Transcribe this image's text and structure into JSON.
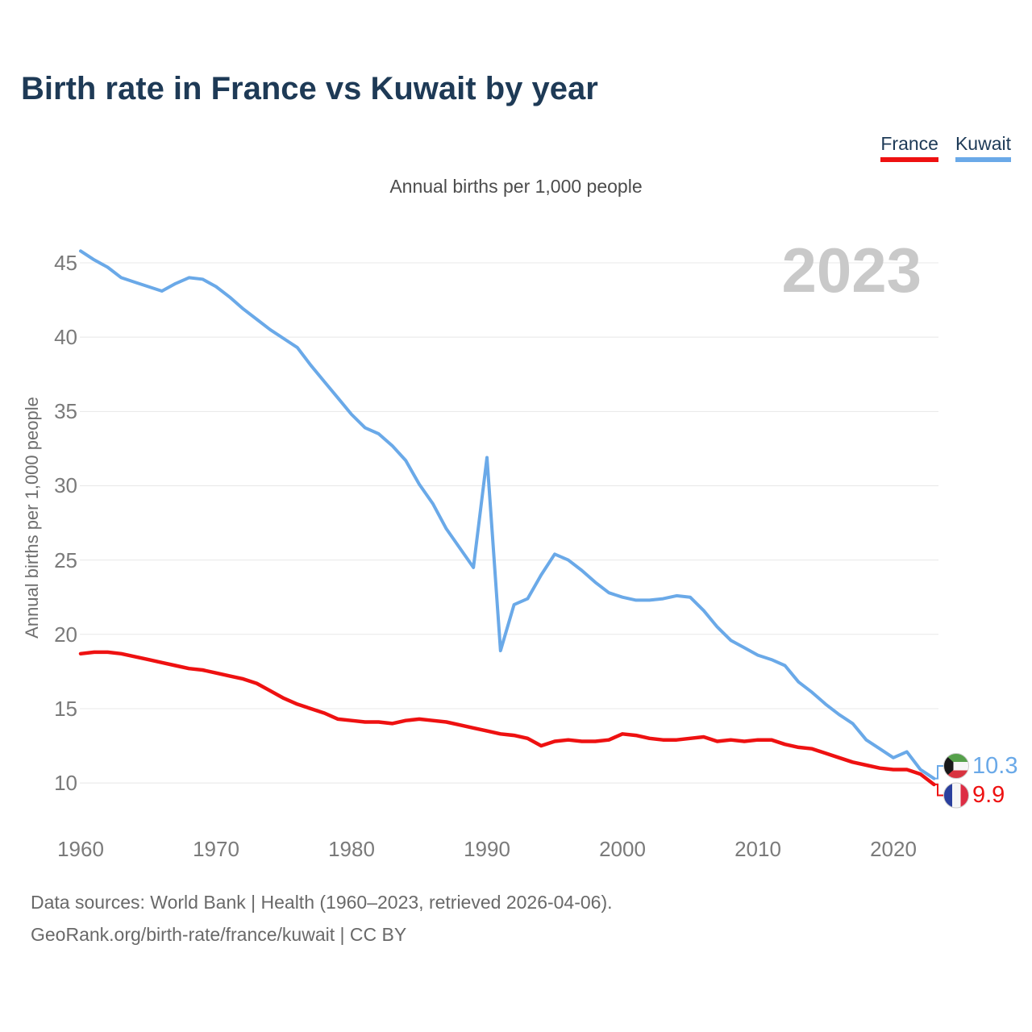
{
  "title": "Birth rate in France vs Kuwait by year",
  "subtitle": "Annual births per 1,000 people",
  "watermark": "2023",
  "legend": {
    "items": [
      {
        "label": "France",
        "color": "#ee1111"
      },
      {
        "label": "Kuwait",
        "color": "#6aa9e8"
      }
    ]
  },
  "end_labels": [
    {
      "country": "Kuwait",
      "value": "10.3",
      "color": "#6aa9e8",
      "flag": "kuwait-flag"
    },
    {
      "country": "France",
      "value": "9.9",
      "color": "#ee1111",
      "flag": "france-flag"
    }
  ],
  "footer": {
    "line1": "Data sources: World Bank | Health (1960–2023, retrieved 2026-04-06).",
    "line2": "GeoRank.org/birth-rate/france/kuwait | CC BY"
  },
  "chart_data": {
    "type": "line",
    "title": "Birth rate in France vs Kuwait by year",
    "xlabel": "",
    "ylabel": "Annual births per 1,000 people",
    "grid": true,
    "legend_position": "top-right",
    "ylim": [
      10,
      46
    ],
    "yticks": [
      10,
      15,
      20,
      25,
      30,
      35,
      40,
      45
    ],
    "xticks": [
      1960,
      1970,
      1980,
      1990,
      2000,
      2010,
      2020
    ],
    "x": [
      1960,
      1961,
      1962,
      1963,
      1964,
      1965,
      1966,
      1967,
      1968,
      1969,
      1970,
      1971,
      1972,
      1973,
      1974,
      1975,
      1976,
      1977,
      1978,
      1979,
      1980,
      1981,
      1982,
      1983,
      1984,
      1985,
      1986,
      1987,
      1988,
      1989,
      1990,
      1991,
      1992,
      1993,
      1994,
      1995,
      1996,
      1997,
      1998,
      1999,
      2000,
      2001,
      2002,
      2003,
      2004,
      2005,
      2006,
      2007,
      2008,
      2009,
      2010,
      2011,
      2012,
      2013,
      2014,
      2015,
      2016,
      2017,
      2018,
      2019,
      2020,
      2021,
      2022,
      2023
    ],
    "series": [
      {
        "name": "France",
        "color": "#ee1111",
        "values": [
          18.7,
          18.8,
          18.8,
          18.7,
          18.5,
          18.3,
          18.1,
          17.9,
          17.7,
          17.6,
          17.4,
          17.2,
          17.0,
          16.7,
          16.2,
          15.7,
          15.3,
          15.0,
          14.7,
          14.3,
          14.2,
          14.1,
          14.1,
          14.0,
          14.2,
          14.3,
          14.2,
          14.1,
          13.9,
          13.7,
          13.5,
          13.3,
          13.2,
          13.0,
          12.5,
          12.8,
          12.9,
          12.8,
          12.8,
          12.9,
          13.3,
          13.2,
          13.0,
          12.9,
          12.9,
          13.0,
          13.1,
          12.8,
          12.9,
          12.8,
          12.9,
          12.9,
          12.6,
          12.4,
          12.3,
          12.0,
          11.7,
          11.4,
          11.2,
          11.0,
          10.9,
          10.9,
          10.6,
          9.9
        ]
      },
      {
        "name": "Kuwait",
        "color": "#6aa9e8",
        "values": [
          45.8,
          45.2,
          44.7,
          44.0,
          43.7,
          43.4,
          43.1,
          43.6,
          44.0,
          43.9,
          43.4,
          42.7,
          41.9,
          41.2,
          40.5,
          39.9,
          39.3,
          38.1,
          37.0,
          35.9,
          34.8,
          33.9,
          33.5,
          32.7,
          31.7,
          30.1,
          28.8,
          27.1,
          25.8,
          24.5,
          31.9,
          18.9,
          22.0,
          22.4,
          24.0,
          25.4,
          25.0,
          24.3,
          23.5,
          22.8,
          22.5,
          22.3,
          22.3,
          22.4,
          22.6,
          22.5,
          21.6,
          20.5,
          19.6,
          19.1,
          18.6,
          18.3,
          17.9,
          16.8,
          16.1,
          15.3,
          14.6,
          14.0,
          12.9,
          12.3,
          11.7,
          12.1,
          10.9,
          10.3
        ]
      }
    ]
  }
}
